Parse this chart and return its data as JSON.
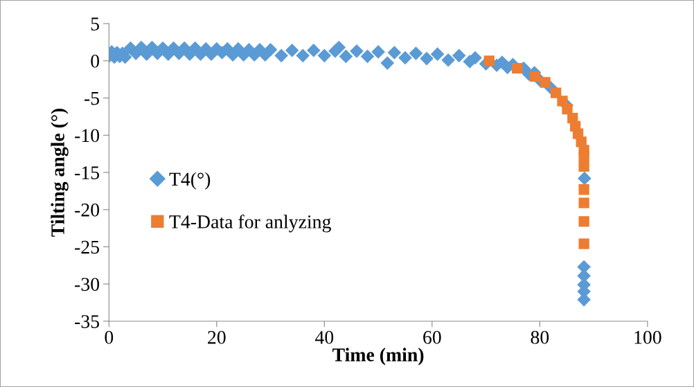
{
  "chart_data": {
    "type": "scatter",
    "xlabel": "Time (min)",
    "ylabel": "Tilting angle (°)",
    "xlim": [
      0,
      100
    ],
    "ylim": [
      -35,
      5
    ],
    "xticks": [
      0,
      20,
      40,
      60,
      80,
      100
    ],
    "yticks": [
      -35,
      -30,
      -25,
      -20,
      -15,
      -10,
      -5,
      0,
      5
    ],
    "grid": false,
    "legend": "left",
    "series": [
      {
        "name": "T4(°)",
        "color": "#5b9bd5",
        "marker": "diamond",
        "x": [
          0,
          0.5,
          1,
          1.5,
          2,
          2.5,
          3,
          4,
          5,
          6,
          7,
          8,
          9,
          10,
          11,
          12,
          13,
          14,
          15,
          16,
          17,
          18,
          19,
          20,
          21,
          22,
          23,
          24,
          25,
          26,
          27,
          28,
          29,
          30,
          32,
          34,
          36,
          38,
          40,
          42,
          42.7,
          44,
          46,
          48,
          50,
          51.7,
          53,
          55,
          57,
          59,
          61,
          63,
          65,
          67,
          68,
          70,
          72,
          73,
          74,
          75,
          77,
          78,
          79,
          80,
          82,
          85,
          88.3,
          88.2,
          88.2,
          88.2,
          88.2,
          88.2
        ],
        "values": [
          0.6,
          1.2,
          0.5,
          1.1,
          0.6,
          1.0,
          0.5,
          1.7,
          1.0,
          1.8,
          0.9,
          1.8,
          1.0,
          1.7,
          0.9,
          1.7,
          1.0,
          1.7,
          0.9,
          1.7,
          0.9,
          1.6,
          0.9,
          1.6,
          1.1,
          1.6,
          0.8,
          1.6,
          0.8,
          1.5,
          0.8,
          1.5,
          0.8,
          1.5,
          0.7,
          1.4,
          0.7,
          1.4,
          0.7,
          1.3,
          1.8,
          0.6,
          1.3,
          0.6,
          1.2,
          -0.3,
          1.1,
          0.4,
          1.0,
          0.3,
          0.9,
          0.1,
          0.7,
          -0.1,
          0.4,
          -0.4,
          -0.6,
          -0.2,
          -0.9,
          -0.5,
          -1.0,
          -1.8,
          -1.6,
          -2.6,
          -3.6,
          -6.0,
          -15.8,
          -27.7,
          -28.9,
          -30.1,
          -31.0,
          -32.1
        ]
      },
      {
        "name": "T4-Data for anlyzing",
        "color": "#ed7d31",
        "marker": "square",
        "x": [
          70.6,
          75.8,
          79.1,
          81.0,
          83.0,
          84.2,
          85.1,
          86.1,
          86.6,
          87.1,
          87.7,
          88.2,
          88.2,
          88.2,
          88.2,
          88.2,
          88.2,
          88.2
        ],
        "values": [
          0.0,
          -1.0,
          -2.1,
          -2.9,
          -4.3,
          -5.4,
          -6.5,
          -7.7,
          -8.8,
          -9.8,
          -10.9,
          -12.0,
          -12.9,
          -14.2,
          -17.3,
          -19.1,
          -21.6,
          -24.6
        ]
      }
    ]
  }
}
